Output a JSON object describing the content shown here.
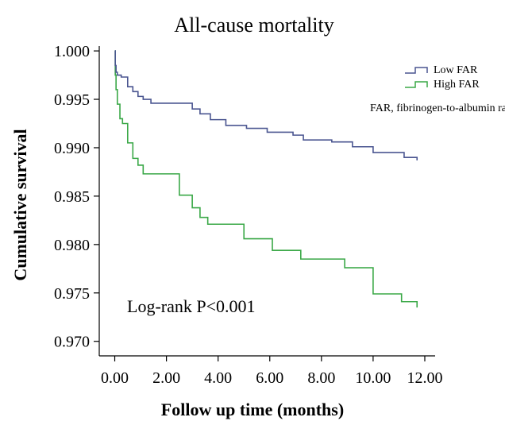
{
  "chart_data": {
    "type": "line",
    "step": true,
    "title": "All-cause mortality",
    "xlabel": "Follow up time (months)",
    "ylabel": "Cumulative survival",
    "xlim": [
      -0.6,
      12.4
    ],
    "ylim": [
      0.9685,
      1.0005
    ],
    "x_ticks": [
      "0.00",
      "2.00",
      "4.00",
      "6.00",
      "8.00",
      "10.00",
      "12.00"
    ],
    "y_ticks": [
      "0.970",
      "0.975",
      "0.980",
      "0.985",
      "0.990",
      "0.995",
      "1.000"
    ],
    "grid": false,
    "legend_position": "top-right",
    "note": "FAR, fibrinogen-to-albumin ratio",
    "annotation": "Log-rank P<0.001",
    "series": [
      {
        "name": "Low FAR",
        "color": "#4a5590",
        "x": [
          0,
          0.02,
          0.05,
          0.1,
          0.25,
          0.5,
          0.7,
          0.9,
          1.1,
          1.4,
          1.9,
          2.4,
          3.0,
          3.3,
          3.7,
          4.3,
          5.1,
          5.9,
          6.9,
          7.3,
          8.4,
          9.2,
          10.0,
          10.6,
          11.2,
          11.7
        ],
        "y": [
          1.0,
          0.9985,
          0.9978,
          0.9975,
          0.9973,
          0.9963,
          0.9958,
          0.9953,
          0.995,
          0.9946,
          0.9946,
          0.9946,
          0.994,
          0.9935,
          0.9929,
          0.9923,
          0.992,
          0.9916,
          0.9913,
          0.9908,
          0.9906,
          0.9901,
          0.9895,
          0.9895,
          0.989,
          0.9887
        ]
      },
      {
        "name": "High FAR",
        "color": "#3aa847",
        "x": [
          0,
          0.02,
          0.05,
          0.1,
          0.2,
          0.3,
          0.5,
          0.7,
          0.9,
          1.1,
          1.4,
          2.5,
          3.0,
          3.3,
          3.6,
          3.9,
          5.0,
          6.1,
          7.2,
          8.9,
          10.0,
          11.1,
          11.7
        ],
        "y": [
          1.0,
          0.9975,
          0.996,
          0.9945,
          0.993,
          0.9925,
          0.9905,
          0.9889,
          0.9882,
          0.9873,
          0.9873,
          0.9851,
          0.9838,
          0.9828,
          0.9821,
          0.9821,
          0.9806,
          0.9794,
          0.9785,
          0.9776,
          0.9749,
          0.9741,
          0.9735
        ]
      }
    ]
  }
}
